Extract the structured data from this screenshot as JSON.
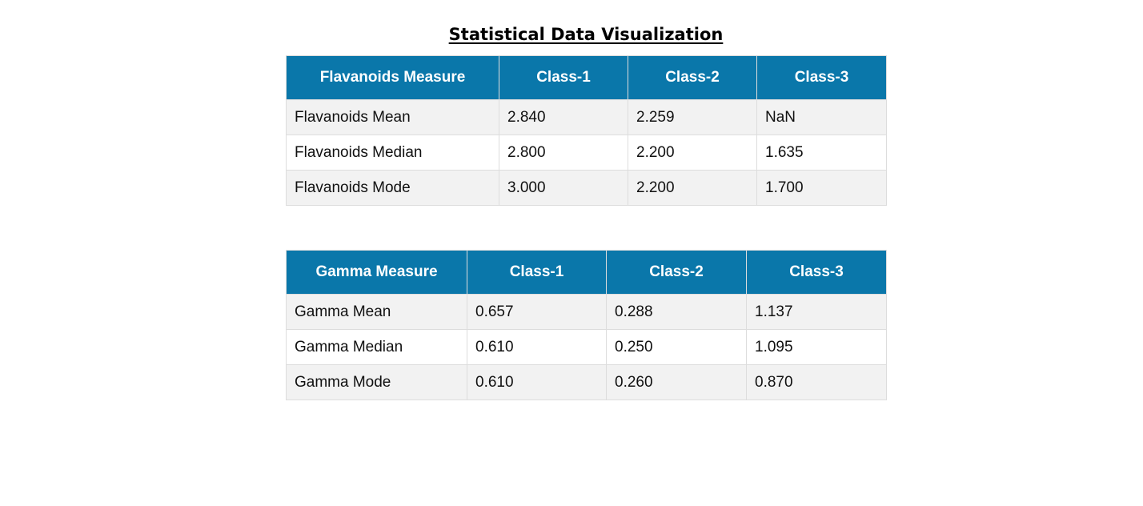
{
  "page": {
    "title": "Statistical Data Visualization"
  },
  "tables": [
    {
      "headers": [
        "Flavanoids Measure",
        "Class-1",
        "Class-2",
        "Class-3"
      ],
      "rows": [
        [
          "Flavanoids Mean",
          "2.840",
          "2.259",
          "NaN"
        ],
        [
          "Flavanoids Median",
          "2.800",
          "2.200",
          "1.635"
        ],
        [
          "Flavanoids Mode",
          "3.000",
          "2.200",
          "1.700"
        ]
      ]
    },
    {
      "headers": [
        "Gamma Measure",
        "Class-1",
        "Class-2",
        "Class-3"
      ],
      "rows": [
        [
          "Gamma Mean",
          "0.657",
          "0.288",
          "1.137"
        ],
        [
          "Gamma Median",
          "0.610",
          "0.250",
          "1.095"
        ],
        [
          "Gamma Mode",
          "0.610",
          "0.260",
          "0.870"
        ]
      ]
    }
  ],
  "colors": {
    "header_background": "#0a77aa",
    "header_text": "#ffffff",
    "row_stripe": "#f2f2f2",
    "border": "#dddddd"
  }
}
